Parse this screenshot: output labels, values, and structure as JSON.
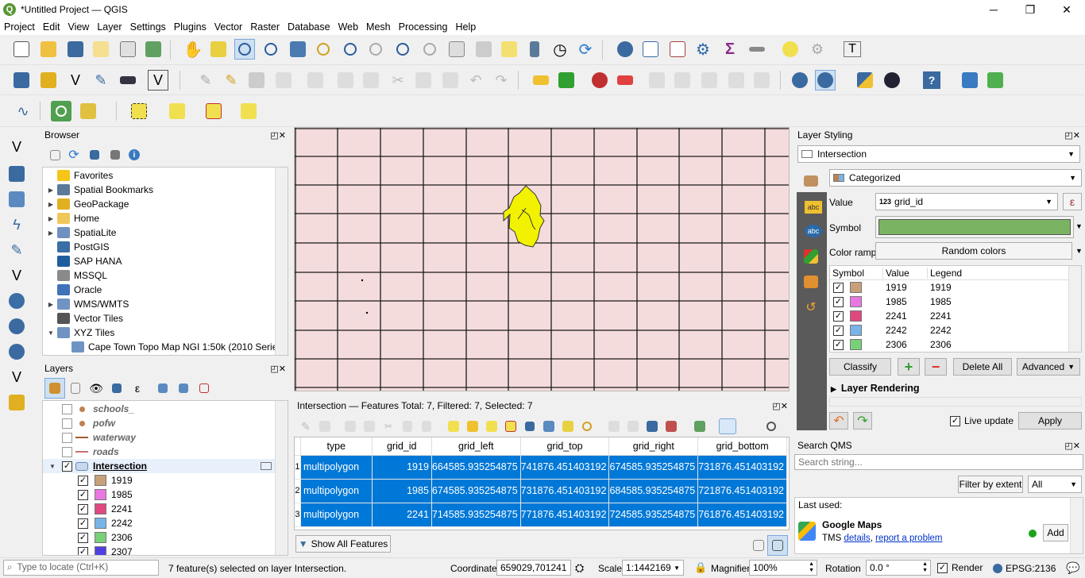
{
  "window": {
    "title": "*Untitled Project — QGIS",
    "minimize": "─",
    "maximize": "❐",
    "close": "✕",
    "logo": "Q"
  },
  "menu": [
    "Project",
    "Edit",
    "View",
    "Layer",
    "Settings",
    "Plugins",
    "Vector",
    "Raster",
    "Database",
    "Web",
    "Mesh",
    "Processing",
    "Help"
  ],
  "browser": {
    "title": "Browser",
    "items": [
      {
        "label": "Favorites",
        "icon": "star-icon",
        "color": "#f5c518",
        "arrow": ""
      },
      {
        "label": "Spatial Bookmarks",
        "icon": "bookmark-icon",
        "color": "#5a7a9a",
        "arrow": "▶"
      },
      {
        "label": "GeoPackage",
        "icon": "geopackage-icon",
        "color": "#e0b020",
        "arrow": "▶"
      },
      {
        "label": "Home",
        "icon": "folder-icon",
        "color": "#f0c85a",
        "arrow": "▶"
      },
      {
        "label": "SpatiaLite",
        "icon": "spatialite-icon",
        "color": "#7090c0",
        "arrow": "▶"
      },
      {
        "label": "PostGIS",
        "icon": "postgis-icon",
        "color": "#3a6ea5",
        "arrow": ""
      },
      {
        "label": "SAP HANA",
        "icon": "sap-hana-icon",
        "color": "#1f5e9e",
        "arrow": ""
      },
      {
        "label": "MSSQL",
        "icon": "mssql-icon",
        "color": "#8a8a8a",
        "arrow": ""
      },
      {
        "label": "Oracle",
        "icon": "oracle-icon",
        "color": "#3f72b8",
        "arrow": ""
      },
      {
        "label": "WMS/WMTS",
        "icon": "wms-icon",
        "color": "#6f94c4",
        "arrow": "▶"
      },
      {
        "label": "Vector Tiles",
        "icon": "vector-tiles-icon",
        "color": "#555555",
        "arrow": ""
      },
      {
        "label": "XYZ Tiles",
        "icon": "xyz-tiles-icon",
        "color": "#6f94c4",
        "arrow": "▼"
      },
      {
        "label": "Cape Town Topo Map NGI 1:50k (2010 Series)",
        "icon": "tile-grid-icon",
        "color": "#6f94c4",
        "arrow": "",
        "indent": true
      }
    ]
  },
  "layers": {
    "title": "Layers",
    "items": [
      {
        "label": "schools_",
        "type": "point",
        "color": "#c08050",
        "checked": false,
        "italic": true
      },
      {
        "label": "pofw",
        "type": "point",
        "color": "#c08050",
        "checked": false,
        "italic": true
      },
      {
        "label": "waterway",
        "type": "line",
        "color": "#a05a30",
        "checked": false,
        "italic": true
      },
      {
        "label": "roads",
        "type": "line",
        "color": "#c87070",
        "checked": false,
        "italic": true
      },
      {
        "label": "Intersection",
        "type": "polygon",
        "color": "#aac",
        "checked": true,
        "italic": false,
        "bold": true
      },
      {
        "label": "1919",
        "type": "class",
        "color": "#c8a078",
        "checked": true
      },
      {
        "label": "1985",
        "type": "class",
        "color": "#e878e0",
        "checked": true
      },
      {
        "label": "2241",
        "type": "class",
        "color": "#e04880",
        "checked": true
      },
      {
        "label": "2242",
        "type": "class",
        "color": "#78b4e8",
        "checked": true
      },
      {
        "label": "2306",
        "type": "class",
        "color": "#78d078",
        "checked": true
      },
      {
        "label": "2307",
        "type": "class",
        "color": "#5040e0",
        "checked": true
      }
    ]
  },
  "attr_table": {
    "title": "Intersection — Features Total: 7, Filtered: 7, Selected: 7",
    "columns": [
      "type",
      "grid_id",
      "grid_left",
      "grid_top",
      "grid_right",
      "grid_bottom"
    ],
    "rows": [
      {
        "n": "1",
        "type": "multipolygon",
        "grid_id": "1919",
        "grid_left": "664585.935254875",
        "grid_top": "741876.451403192",
        "grid_right": "674585.935254875",
        "grid_bottom": "731876.451403192"
      },
      {
        "n": "2",
        "type": "multipolygon",
        "grid_id": "1985",
        "grid_left": "674585.935254875",
        "grid_top": "731876.451403192",
        "grid_right": "684585.935254875",
        "grid_bottom": "721876.451403192"
      },
      {
        "n": "3",
        "type": "multipolygon",
        "grid_id": "2241",
        "grid_left": "714585.935254875",
        "grid_top": "771876.451403192",
        "grid_right": "724585.935254875",
        "grid_bottom": "761876.451403192"
      }
    ],
    "show_all": "Show All Features"
  },
  "styling": {
    "title": "Layer Styling",
    "layer": "Intersection",
    "renderer": "Categorized",
    "value_label": "Value",
    "value_field": "grid_id",
    "value_prefix": "123",
    "symbol_label": "Symbol",
    "symbol_color": "#7ab463",
    "ramp_label": "Color ramp",
    "ramp_value": "Random colors",
    "col_symbol": "Symbol",
    "col_value": "Value",
    "col_legend": "Legend",
    "classes": [
      {
        "value": "1919",
        "legend": "1919",
        "color": "#c8a078"
      },
      {
        "value": "1985",
        "legend": "1985",
        "color": "#e878e0"
      },
      {
        "value": "2241",
        "legend": "2241",
        "color": "#e04880"
      },
      {
        "value": "2242",
        "legend": "2242",
        "color": "#78b4e8"
      },
      {
        "value": "2306",
        "legend": "2306",
        "color": "#78d078"
      }
    ],
    "classify": "Classify",
    "delete_all": "Delete All",
    "advanced": "Advanced",
    "layer_rendering": "Layer Rendering",
    "live_update": "Live update",
    "apply": "Apply"
  },
  "qms": {
    "title": "Search QMS",
    "placeholder": "Search string...",
    "filter_extent": "Filter by extent",
    "filter_all": "All",
    "last_used": "Last used:",
    "service_name": "Google Maps",
    "service_type": "TMS",
    "details": "details",
    "report": "report a problem",
    "add": "Add"
  },
  "status": {
    "locate_placeholder": "Type to locate (Ctrl+K)",
    "message": "7 feature(s) selected on layer Intersection.",
    "coord_label": "Coordinate",
    "coord_value": "659029,701241",
    "scale_label": "Scale",
    "scale_value": "1:1442169",
    "magnifier_label": "Magnifier",
    "magnifier_value": "100%",
    "rotation_label": "Rotation",
    "rotation_value": "0.0 °",
    "render_label": "Render",
    "crs": "EPSG:2136"
  },
  "colors": {
    "map_bg": "#f5dcdc",
    "grid": "#1a1a1a",
    "feature": "#f2f200",
    "selection": "#0078d7"
  }
}
